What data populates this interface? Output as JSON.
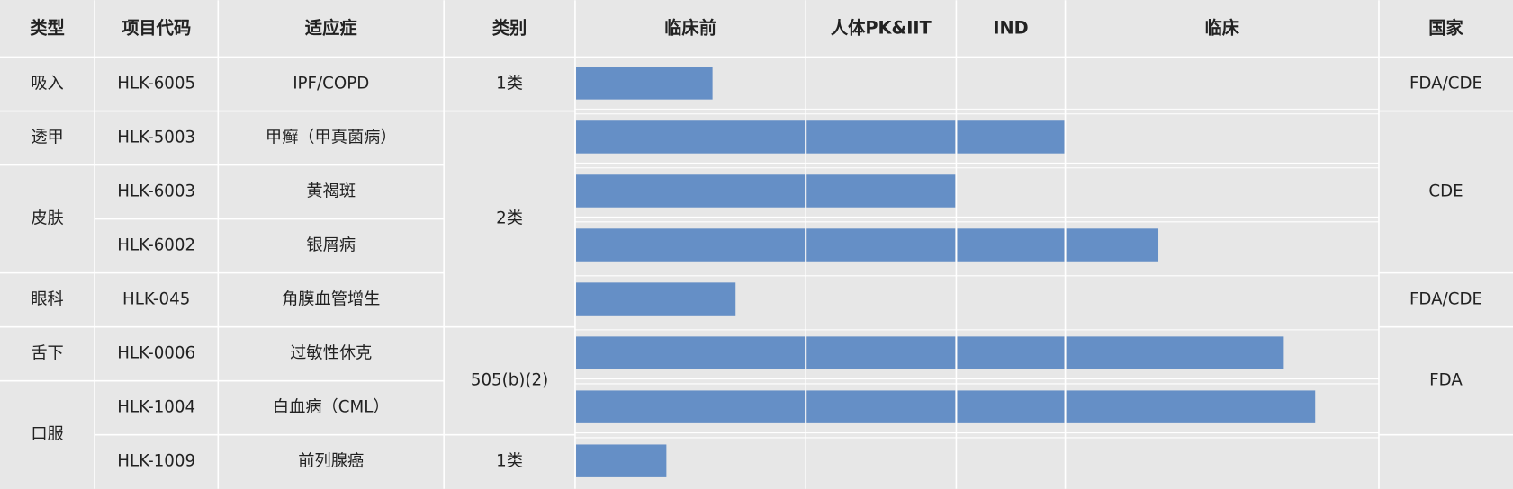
{
  "table": {
    "header": [
      "类型",
      "项目代码",
      "适应症",
      "类别",
      "临床前",
      "人体PK&IIT",
      "IND",
      "临床",
      "国家"
    ],
    "type_column": [
      "吸入",
      "透甲",
      "皮肤",
      "眼科",
      "舌下",
      "口服"
    ],
    "category_column": [
      "1类",
      "2类",
      "505(b)(2)",
      "1类"
    ],
    "country_column": [
      "FDA/CDE",
      "CDE",
      "FDA/CDE",
      "FDA"
    ],
    "rows": [
      {
        "code": "HLK-6005",
        "indication": "IPF/COPD",
        "progress": 0.6
      },
      {
        "code": "HLK-5003",
        "indication": "甲癣（甲真菌病）",
        "progress": 3.0
      },
      {
        "code": "HLK-6003",
        "indication": "黄褐斑",
        "progress": 2.0
      },
      {
        "code": "HLK-6002",
        "indication": "银屑病",
        "progress": 3.3
      },
      {
        "code": "HLK-045",
        "indication": "角膜血管增生",
        "progress": 0.7
      },
      {
        "code": "HLK-0006",
        "indication": "过敏性休克",
        "progress": 3.7
      },
      {
        "code": "HLK-1004",
        "indication": "白血病（CML）",
        "progress": 3.8
      },
      {
        "code": "HLK-1009",
        "indication": "前列腺癌",
        "progress": 0.4
      }
    ]
  }
}
